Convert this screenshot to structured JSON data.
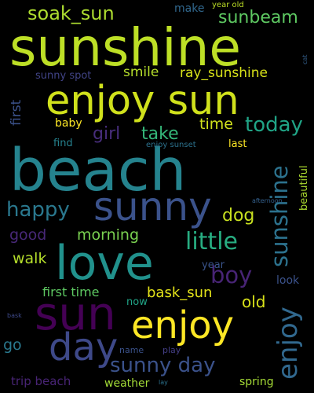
{
  "word_cloud": {
    "background": "#000000",
    "words": [
      {
        "text": "sunshine",
        "color": "#bddf26"
      },
      {
        "text": "beach",
        "color": "#25838e"
      },
      {
        "text": "enjoy sun",
        "color": "#d0e11c"
      },
      {
        "text": "sunny",
        "color": "#3b528b"
      },
      {
        "text": "love",
        "color": "#21918c"
      },
      {
        "text": "sun",
        "color": "#440154"
      },
      {
        "text": "enjoy",
        "color": "#fde725"
      },
      {
        "text": "day",
        "color": "#3e4989"
      },
      {
        "text": "soak_sun",
        "color": "#addc30"
      },
      {
        "text": "sunbeam",
        "color": "#5ec962"
      },
      {
        "text": "smile",
        "color": "#b5de2b"
      },
      {
        "text": "ray_sunshine",
        "color": "#d8e219"
      },
      {
        "text": "girl",
        "color": "#472d7b"
      },
      {
        "text": "take",
        "color": "#35b779"
      },
      {
        "text": "time",
        "color": "#d0e11c"
      },
      {
        "text": "today",
        "color": "#20a486"
      },
      {
        "text": "happy",
        "color": "#2a788e"
      },
      {
        "text": "little",
        "color": "#27ad81"
      },
      {
        "text": "dog",
        "color": "#c8e020"
      },
      {
        "text": "sunshine",
        "color": "#2c728e"
      },
      {
        "text": "morning",
        "color": "#7ad151"
      },
      {
        "text": "good",
        "color": "#482878"
      },
      {
        "text": "walk",
        "color": "#b5de2b"
      },
      {
        "text": "boy",
        "color": "#482475"
      },
      {
        "text": "first time",
        "color": "#5ec962"
      },
      {
        "text": "bask_sun",
        "color": "#e5e419"
      },
      {
        "text": "old",
        "color": "#d8e219"
      },
      {
        "text": "enjoy",
        "color": "#31688e"
      },
      {
        "text": "sunny day",
        "color": "#3b528b"
      },
      {
        "text": "go",
        "color": "#2a788e"
      },
      {
        "text": "trip beach",
        "color": "#482475"
      },
      {
        "text": "weather",
        "color": "#a2da37"
      },
      {
        "text": "spring",
        "color": "#a5db36"
      },
      {
        "text": "make",
        "color": "#31688e"
      },
      {
        "text": "year old",
        "color": "#bddf26"
      },
      {
        "text": "sunny spot",
        "color": "#414487"
      },
      {
        "text": "first",
        "color": "#3b528b"
      },
      {
        "text": "baby",
        "color": "#fde725"
      },
      {
        "text": "find",
        "color": "#26828e"
      },
      {
        "text": "enjoy sunset",
        "color": "#2c728e"
      },
      {
        "text": "last",
        "color": "#fde725"
      },
      {
        "text": "beautiful",
        "color": "#addc30"
      },
      {
        "text": "afternoon",
        "color": "#34608d"
      },
      {
        "text": "cat",
        "color": "#34608d"
      },
      {
        "text": "look",
        "color": "#3b528b"
      },
      {
        "text": "year",
        "color": "#3a548c"
      },
      {
        "text": "now",
        "color": "#20a486"
      },
      {
        "text": "bask",
        "color": "#3e4989"
      },
      {
        "text": "name",
        "color": "#3b528b"
      },
      {
        "text": "play",
        "color": "#433e85"
      },
      {
        "text": "lay",
        "color": "#2c728e"
      }
    ]
  }
}
